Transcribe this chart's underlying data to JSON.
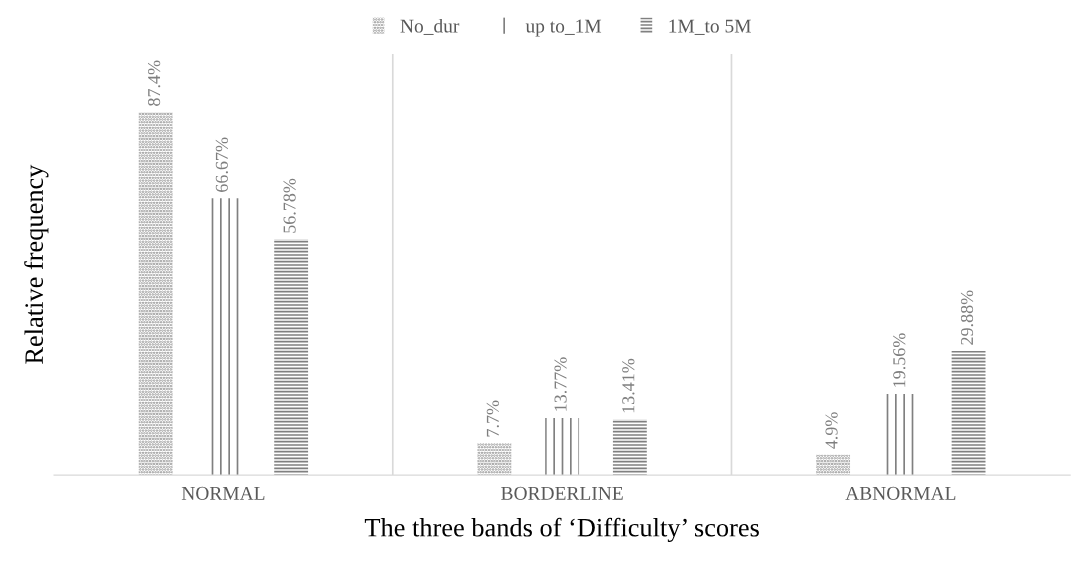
{
  "chart_data": {
    "type": "bar",
    "xlabel": "The three bands of ‘Difficulty’ scores",
    "ylabel": "Relative frequency",
    "categories": [
      "NORMAL",
      "BORDERLINE",
      "ABNORMAL"
    ],
    "series": [
      {
        "name": "No_dur",
        "color": "#8c8c8c",
        "values": [
          87.4,
          7.7,
          4.9
        ],
        "value_labels": [
          "87.4%",
          "7.7%",
          "4.9%"
        ]
      },
      {
        "name": "up to_1M",
        "color": "#808080",
        "values": [
          66.67,
          13.77,
          19.56
        ],
        "value_labels": [
          "66.67%",
          "13.77%",
          "19.56%"
        ]
      },
      {
        "name": "1M_to 5M",
        "color": "#808080",
        "values": [
          56.78,
          13.41,
          29.88
        ],
        "value_labels": [
          "56.78%",
          "13.41%",
          "29.88%"
        ]
      }
    ],
    "legend": "top",
    "grid": "x",
    "tick_labels": "x"
  }
}
